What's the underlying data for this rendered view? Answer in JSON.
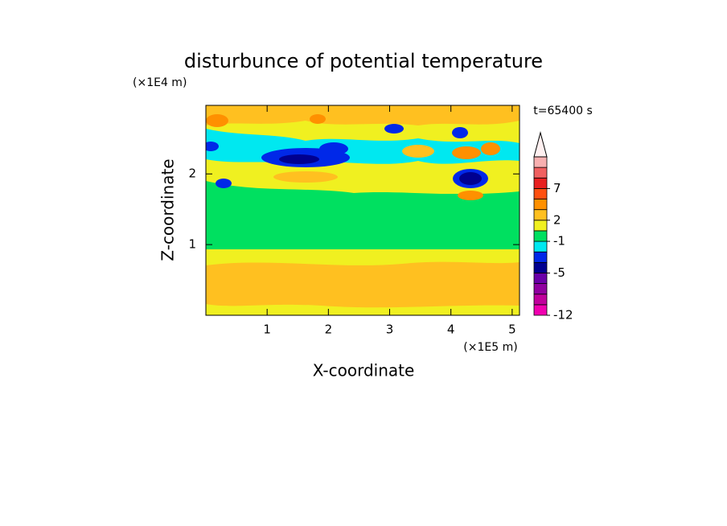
{
  "chart_data": {
    "type": "contour",
    "title": "disturbunce of potential temperature",
    "x_label": "X-coordinate",
    "y_label": "Z-coordinate",
    "x_unit": "(×1E5 m)",
    "y_unit": "(×1E4 m)",
    "annotation": "t=65400 s",
    "xlim": [
      0,
      5.12
    ],
    "xticks": [
      1,
      2,
      3,
      4,
      5
    ],
    "ylim": [
      0,
      2.97
    ],
    "yticks": [
      1,
      2
    ],
    "colorbar": {
      "levels": [
        -12,
        -10,
        -8,
        -6,
        -5,
        -3,
        -2,
        -1,
        0,
        2,
        3,
        5,
        7,
        9,
        11,
        13
      ],
      "colors": [
        "#f000b0",
        "#c0009c",
        "#9000a0",
        "#6a00a8",
        "#000090",
        "#0028e8",
        "#00e8f0",
        "#00e060",
        "#f0f020",
        "#ffc020",
        "#ff9000",
        "#ff5010",
        "#e82020",
        "#f06060",
        "#f8b0b0"
      ],
      "ticks": [
        -12,
        -5,
        -1,
        2,
        7
      ],
      "extend": "max"
    }
  }
}
